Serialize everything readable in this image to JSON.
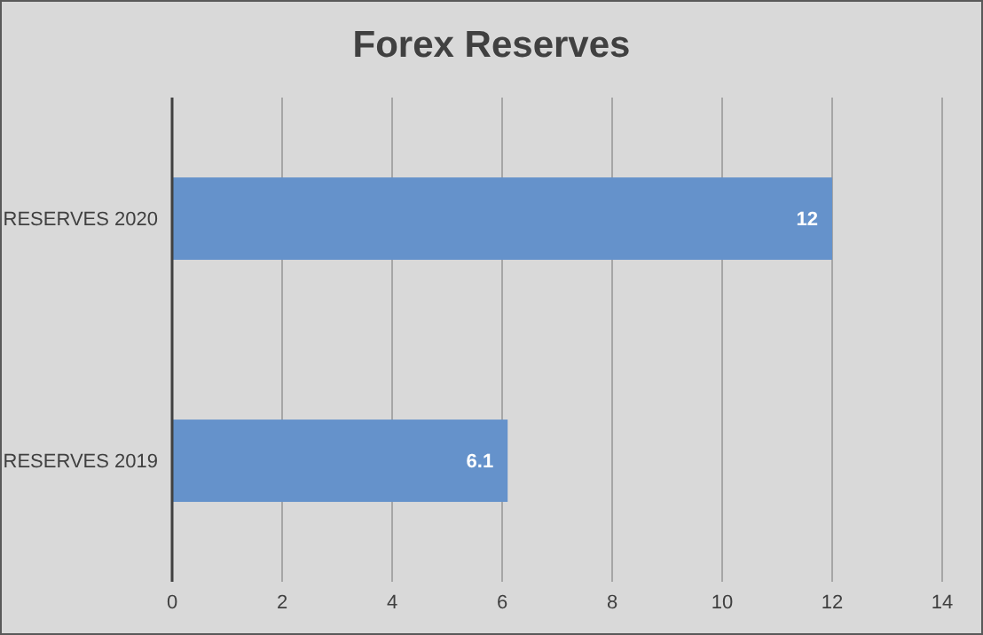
{
  "chart_data": {
    "type": "bar",
    "orientation": "horizontal",
    "title": "Forex Reserves",
    "categories": [
      "RESERVES 2020",
      "RESERVES 2019"
    ],
    "values": [
      12,
      6.1
    ],
    "color": "#6592cb",
    "xlim": [
      0,
      14
    ],
    "xticks": [
      0,
      2,
      4,
      6,
      8,
      10,
      12,
      14
    ],
    "grid": "x",
    "data_labels": true
  }
}
